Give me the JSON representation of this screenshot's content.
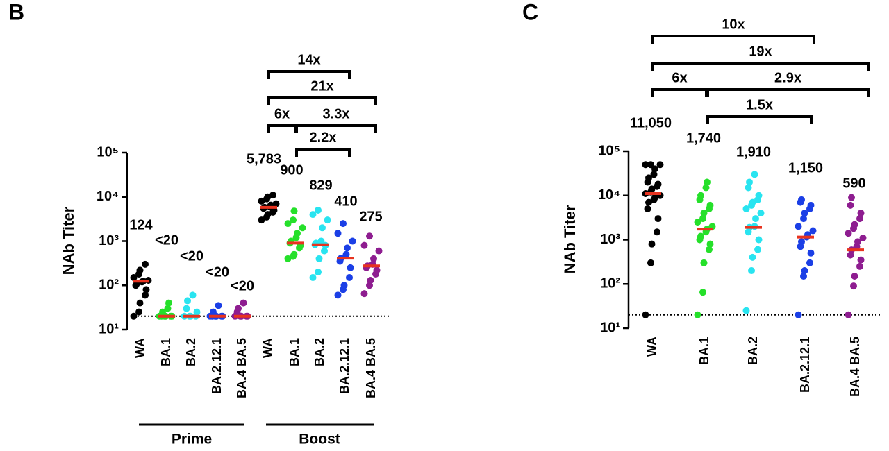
{
  "chart_data": [
    {
      "type": "strip",
      "panel_label": "B",
      "y_label": "NAb Titer",
      "log_scale": true,
      "ylim": [
        10,
        100000
      ],
      "yticks": [
        {
          "value": 10,
          "label": "10¹"
        },
        {
          "value": 100,
          "label": "10²"
        },
        {
          "value": 1000,
          "label": "10³"
        },
        {
          "value": 10000,
          "label": "10⁴"
        },
        {
          "value": 100000,
          "label": "10⁵"
        }
      ],
      "reference_line": 20,
      "categories": [
        "WA",
        "BA.1",
        "BA.2",
        "BA.2.12.1",
        "BA.4 BA.5",
        "WA",
        "BA.1",
        "BA.2",
        "BA.2.12.1",
        "BA.4 BA.5"
      ],
      "colors": [
        "#000000",
        "#25e02a",
        "#29e4f0",
        "#1b3fe6",
        "#8e1d90",
        "#000000",
        "#25e02a",
        "#29e4f0",
        "#1b3fe6",
        "#8e1d90"
      ],
      "median_color": "#e8331f",
      "points": [
        [
          20,
          25,
          40,
          60,
          80,
          100,
          110,
          120,
          124,
          130,
          150,
          180,
          220,
          300
        ],
        [
          20,
          20,
          20,
          20,
          20,
          20,
          25,
          30,
          40
        ],
        [
          20,
          20,
          20,
          20,
          25,
          30,
          45,
          60
        ],
        [
          20,
          20,
          20,
          20,
          20,
          20,
          25,
          35
        ],
        [
          20,
          20,
          20,
          20,
          20,
          25,
          30,
          40
        ],
        [
          3000,
          3500,
          4000,
          4500,
          5000,
          5500,
          5783,
          6000,
          6500,
          7000,
          8000,
          9000,
          10000,
          11000
        ],
        [
          400,
          450,
          500,
          700,
          800,
          900,
          1000,
          1200,
          1500,
          2000,
          2500,
          3000,
          4800
        ],
        [
          150,
          200,
          400,
          600,
          800,
          829,
          900,
          1000,
          2000,
          3000,
          4000,
          5000
        ],
        [
          60,
          80,
          100,
          150,
          250,
          350,
          410,
          500,
          700,
          1000,
          1500,
          2500
        ],
        [
          65,
          100,
          130,
          180,
          220,
          250,
          275,
          300,
          400,
          600,
          800,
          1300
        ]
      ],
      "medians": [
        124,
        20,
        20,
        20,
        20,
        5783,
        900,
        829,
        410,
        275
      ],
      "median_labels": [
        "124",
        "<20",
        "<20",
        "<20",
        "<20",
        "5,783",
        "900",
        "829",
        "410",
        "275"
      ],
      "comparisons": [
        "14x",
        "21x",
        "6x",
        "3.3x",
        "2.2x"
      ],
      "groups": [
        "Prime",
        "Boost"
      ]
    },
    {
      "type": "strip",
      "panel_label": "C",
      "y_label": "NAb Titer",
      "log_scale": true,
      "ylim": [
        10,
        100000
      ],
      "yticks": [
        {
          "value": 10,
          "label": "10¹"
        },
        {
          "value": 100,
          "label": "10²"
        },
        {
          "value": 1000,
          "label": "10³"
        },
        {
          "value": 10000,
          "label": "10⁴"
        },
        {
          "value": 100000,
          "label": "10⁵"
        }
      ],
      "reference_line": 20,
      "categories": [
        "WA",
        "BA.1",
        "BA.2",
        "BA.2.12.1",
        "BA.4 BA.5"
      ],
      "colors": [
        "#000000",
        "#25e02a",
        "#29e4f0",
        "#1b3fe6",
        "#8e1d90"
      ],
      "median_color": "#e8331f",
      "points": [
        [
          20,
          300,
          800,
          1500,
          3000,
          5000,
          7000,
          8000,
          9000,
          10000,
          11050,
          12000,
          14000,
          16000,
          18000,
          20000,
          25000,
          30000,
          40000,
          50000,
          50000,
          50000
        ],
        [
          20,
          65,
          300,
          600,
          800,
          1000,
          1200,
          1500,
          1740,
          2000,
          2500,
          3000,
          4000,
          5000,
          6000,
          8000,
          10000,
          15000,
          20000
        ],
        [
          25,
          200,
          400,
          600,
          1000,
          1500,
          1910,
          2000,
          3000,
          4000,
          5000,
          6000,
          7000,
          8000,
          10000,
          15000,
          20000,
          30000
        ],
        [
          20,
          150,
          200,
          300,
          500,
          700,
          900,
          1150,
          1300,
          1600,
          2000,
          3000,
          4000,
          5000,
          6000,
          7000,
          8000
        ],
        [
          20,
          90,
          150,
          250,
          350,
          450,
          590,
          700,
          900,
          1100,
          1400,
          1800,
          2200,
          3000,
          4000,
          6000,
          9000
        ]
      ],
      "medians": [
        11050,
        1740,
        1910,
        1150,
        590
      ],
      "median_labels": [
        "11,050",
        "1,740",
        "1,910",
        "1,150",
        "590"
      ],
      "comparisons": [
        "10x",
        "19x",
        "6x",
        "2.9x",
        "1.5x"
      ]
    }
  ]
}
